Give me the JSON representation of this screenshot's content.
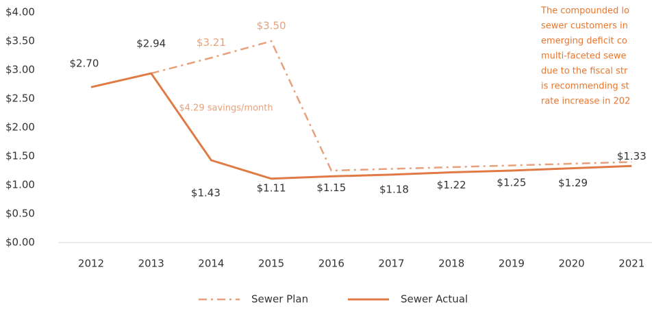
{
  "chart_data": {
    "type": "line",
    "categories": [
      "2012",
      "2013",
      "2014",
      "2015",
      "2016",
      "2017",
      "2018",
      "2019",
      "2020",
      "2021"
    ],
    "series": [
      {
        "name": "Sewer Plan",
        "color": "#e8a07a",
        "style": "dashdot",
        "values": [
          null,
          2.94,
          3.21,
          3.5,
          1.25,
          1.28,
          1.31,
          1.34,
          1.37,
          1.4
        ],
        "value_labels": [
          null,
          null,
          "$3.21",
          "$3.50",
          null,
          null,
          null,
          null,
          null,
          null
        ]
      },
      {
        "name": "Sewer Actual",
        "color": "#e07a45",
        "style": "solid",
        "values": [
          2.7,
          2.94,
          1.43,
          1.11,
          1.15,
          1.18,
          1.22,
          1.25,
          1.29,
          1.33
        ],
        "value_labels": [
          "$2.70",
          "$2.94",
          "$1.43",
          "$1.11",
          "$1.15",
          "$1.18",
          "$1.22",
          "$1.25",
          "$1.29",
          "$1.33"
        ]
      }
    ],
    "ylim": [
      0,
      4
    ],
    "yticks": [
      {
        "value": 0,
        "label": "$0.00"
      },
      {
        "value": 0.5,
        "label": "$0.50"
      },
      {
        "value": 1,
        "label": "$1.00"
      },
      {
        "value": 1.5,
        "label": "$1.50"
      },
      {
        "value": 2,
        "label": "$2.00"
      },
      {
        "value": 2.5,
        "label": "$2.50"
      },
      {
        "value": 3,
        "label": "$3.00"
      },
      {
        "value": 3.5,
        "label": "$3.50"
      },
      {
        "value": 4,
        "label": "$4.00"
      }
    ],
    "annotations": [
      "$4.29 savings/month"
    ],
    "note_lines": [
      "The compounded lo",
      "sewer customers in",
      "emerging deficit co",
      "multi-faceted sewe",
      "due to the fiscal str",
      "is recommending st",
      "rate increase in 202"
    ],
    "legend": "bottom"
  }
}
